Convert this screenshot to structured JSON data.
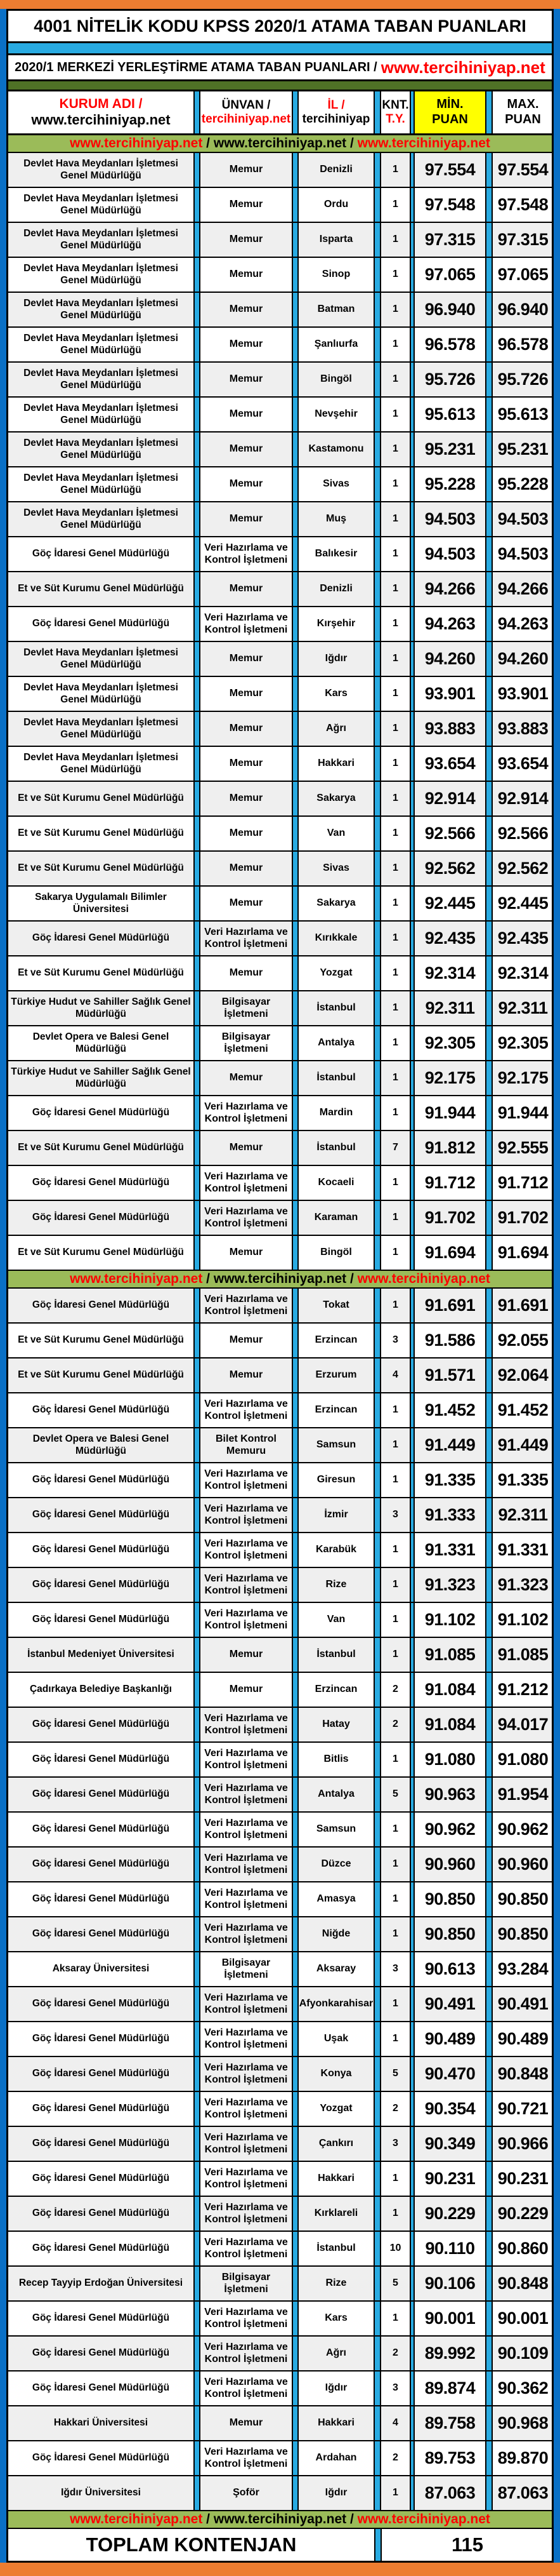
{
  "title": "4001 NİTELİK KODU KPSS 2020/1 ATAMA TABAN PUANLARI",
  "subtitle": {
    "black": "2020/1 MERKEZİ YERLEŞTİRME ATAMA TABAN PUANLARI /",
    "red": "www.tercihiniyap.net"
  },
  "columns": {
    "kurum": {
      "line1": "KURUM ADI /",
      "line2": "www.tercihiniyap.net"
    },
    "unvan": {
      "line1": "ÜNVAN /",
      "line2": "tercihiniyap.net"
    },
    "il": {
      "line1": "İL /",
      "line2": "tercihiniyap"
    },
    "knt": {
      "line1": "KNT.",
      "line2": "T.Y."
    },
    "min": {
      "line1": "MİN.",
      "line2": "PUAN"
    },
    "max": {
      "line1": "MAX.",
      "line2": "PUAN"
    }
  },
  "watermark_band": {
    "red1": "www.tercihiniyap.net",
    "slash": " / ",
    "black": "www.tercihiniyap.net",
    "red2": "www.tercihiniyap.net"
  },
  "footer": {
    "label": "TOPLAM KONTENJAN",
    "total": "115"
  },
  "colors": {
    "orange": "#ED7D31",
    "frame_blue": "#0a70c6",
    "cyan": "#29ABE2",
    "dark_green": "#4f7226",
    "light_green": "#9BBB59",
    "yellow": "#FFFF00",
    "red": "#FF0000",
    "alt_row": "#efefef"
  },
  "row_groups": [
    [
      {
        "kurum": "Devlet Hava Meydanları İşletmesi Genel Müdürlüğü",
        "unvan": "Memur",
        "il": "Denizli",
        "knt": "1",
        "min": "97.554",
        "max": "97.554"
      },
      {
        "kurum": "Devlet Hava Meydanları İşletmesi Genel Müdürlüğü",
        "unvan": "Memur",
        "il": "Ordu",
        "knt": "1",
        "min": "97.548",
        "max": "97.548"
      },
      {
        "kurum": "Devlet Hava Meydanları İşletmesi Genel Müdürlüğü",
        "unvan": "Memur",
        "il": "Isparta",
        "knt": "1",
        "min": "97.315",
        "max": "97.315"
      },
      {
        "kurum": "Devlet Hava Meydanları İşletmesi Genel Müdürlüğü",
        "unvan": "Memur",
        "il": "Sinop",
        "knt": "1",
        "min": "97.065",
        "max": "97.065"
      },
      {
        "kurum": "Devlet Hava Meydanları İşletmesi Genel Müdürlüğü",
        "unvan": "Memur",
        "il": "Batman",
        "knt": "1",
        "min": "96.940",
        "max": "96.940"
      },
      {
        "kurum": "Devlet Hava Meydanları İşletmesi Genel Müdürlüğü",
        "unvan": "Memur",
        "il": "Şanlıurfa",
        "knt": "1",
        "min": "96.578",
        "max": "96.578"
      },
      {
        "kurum": "Devlet Hava Meydanları İşletmesi Genel Müdürlüğü",
        "unvan": "Memur",
        "il": "Bingöl",
        "knt": "1",
        "min": "95.726",
        "max": "95.726"
      },
      {
        "kurum": "Devlet Hava Meydanları İşletmesi Genel Müdürlüğü",
        "unvan": "Memur",
        "il": "Nevşehir",
        "knt": "1",
        "min": "95.613",
        "max": "95.613"
      },
      {
        "kurum": "Devlet Hava Meydanları İşletmesi Genel Müdürlüğü",
        "unvan": "Memur",
        "il": "Kastamonu",
        "knt": "1",
        "min": "95.231",
        "max": "95.231"
      },
      {
        "kurum": "Devlet Hava Meydanları İşletmesi Genel Müdürlüğü",
        "unvan": "Memur",
        "il": "Sivas",
        "knt": "1",
        "min": "95.228",
        "max": "95.228"
      },
      {
        "kurum": "Devlet Hava Meydanları İşletmesi Genel Müdürlüğü",
        "unvan": "Memur",
        "il": "Muş",
        "knt": "1",
        "min": "94.503",
        "max": "94.503"
      },
      {
        "kurum": "Göç İdaresi Genel Müdürlüğü",
        "unvan": "Veri Hazırlama ve Kontrol İşletmeni",
        "il": "Balıkesir",
        "knt": "1",
        "min": "94.503",
        "max": "94.503"
      },
      {
        "kurum": "Et ve Süt Kurumu Genel Müdürlüğü",
        "unvan": "Memur",
        "il": "Denizli",
        "knt": "1",
        "min": "94.266",
        "max": "94.266"
      },
      {
        "kurum": "Göç İdaresi Genel Müdürlüğü",
        "unvan": "Veri Hazırlama ve Kontrol İşletmeni",
        "il": "Kırşehir",
        "knt": "1",
        "min": "94.263",
        "max": "94.263"
      },
      {
        "kurum": "Devlet Hava Meydanları İşletmesi Genel Müdürlüğü",
        "unvan": "Memur",
        "il": "Iğdır",
        "knt": "1",
        "min": "94.260",
        "max": "94.260"
      },
      {
        "kurum": "Devlet Hava Meydanları İşletmesi Genel Müdürlüğü",
        "unvan": "Memur",
        "il": "Kars",
        "knt": "1",
        "min": "93.901",
        "max": "93.901"
      },
      {
        "kurum": "Devlet Hava Meydanları İşletmesi Genel Müdürlüğü",
        "unvan": "Memur",
        "il": "Ağrı",
        "knt": "1",
        "min": "93.883",
        "max": "93.883"
      },
      {
        "kurum": "Devlet Hava Meydanları İşletmesi Genel Müdürlüğü",
        "unvan": "Memur",
        "il": "Hakkari",
        "knt": "1",
        "min": "93.654",
        "max": "93.654"
      },
      {
        "kurum": "Et ve Süt Kurumu Genel Müdürlüğü",
        "unvan": "Memur",
        "il": "Sakarya",
        "knt": "1",
        "min": "92.914",
        "max": "92.914"
      },
      {
        "kurum": "Et ve Süt Kurumu Genel Müdürlüğü",
        "unvan": "Memur",
        "il": "Van",
        "knt": "1",
        "min": "92.566",
        "max": "92.566"
      },
      {
        "kurum": "Et ve Süt Kurumu Genel Müdürlüğü",
        "unvan": "Memur",
        "il": "Sivas",
        "knt": "1",
        "min": "92.562",
        "max": "92.562"
      },
      {
        "kurum": "Sakarya Uygulamalı Bilimler Üniversitesi",
        "unvan": "Memur",
        "il": "Sakarya",
        "knt": "1",
        "min": "92.445",
        "max": "92.445"
      },
      {
        "kurum": "Göç İdaresi Genel Müdürlüğü",
        "unvan": "Veri Hazırlama ve Kontrol İşletmeni",
        "il": "Kırıkkale",
        "knt": "1",
        "min": "92.435",
        "max": "92.435"
      },
      {
        "kurum": "Et ve Süt Kurumu Genel Müdürlüğü",
        "unvan": "Memur",
        "il": "Yozgat",
        "knt": "1",
        "min": "92.314",
        "max": "92.314"
      },
      {
        "kurum": "Türkiye Hudut ve Sahiller Sağlık Genel Müdürlüğü",
        "unvan": "Bilgisayar İşletmeni",
        "il": "İstanbul",
        "knt": "1",
        "min": "92.311",
        "max": "92.311"
      },
      {
        "kurum": "Devlet Opera ve Balesi Genel Müdürlüğü",
        "unvan": "Bilgisayar İşletmeni",
        "il": "Antalya",
        "knt": "1",
        "min": "92.305",
        "max": "92.305"
      },
      {
        "kurum": "Türkiye Hudut ve Sahiller Sağlık Genel Müdürlüğü",
        "unvan": "Memur",
        "il": "İstanbul",
        "knt": "1",
        "min": "92.175",
        "max": "92.175"
      },
      {
        "kurum": "Göç İdaresi Genel Müdürlüğü",
        "unvan": "Veri Hazırlama ve Kontrol İşletmeni",
        "il": "Mardin",
        "knt": "1",
        "min": "91.944",
        "max": "91.944"
      },
      {
        "kurum": "Et ve Süt Kurumu Genel Müdürlüğü",
        "unvan": "Memur",
        "il": "İstanbul",
        "knt": "7",
        "min": "91.812",
        "max": "92.555"
      },
      {
        "kurum": "Göç İdaresi Genel Müdürlüğü",
        "unvan": "Veri Hazırlama ve Kontrol İşletmeni",
        "il": "Kocaeli",
        "knt": "1",
        "min": "91.712",
        "max": "91.712"
      },
      {
        "kurum": "Göç İdaresi Genel Müdürlüğü",
        "unvan": "Veri Hazırlama ve Kontrol İşletmeni",
        "il": "Karaman",
        "knt": "1",
        "min": "91.702",
        "max": "91.702"
      },
      {
        "kurum": "Et ve Süt Kurumu Genel Müdürlüğü",
        "unvan": "Memur",
        "il": "Bingöl",
        "knt": "1",
        "min": "91.694",
        "max": "91.694"
      }
    ],
    [
      {
        "kurum": "Göç İdaresi Genel Müdürlüğü",
        "unvan": "Veri Hazırlama ve Kontrol İşletmeni",
        "il": "Tokat",
        "knt": "1",
        "min": "91.691",
        "max": "91.691"
      },
      {
        "kurum": "Et ve Süt Kurumu Genel Müdürlüğü",
        "unvan": "Memur",
        "il": "Erzincan",
        "knt": "3",
        "min": "91.586",
        "max": "92.055"
      },
      {
        "kurum": "Et ve Süt Kurumu Genel Müdürlüğü",
        "unvan": "Memur",
        "il": "Erzurum",
        "knt": "4",
        "min": "91.571",
        "max": "92.064"
      },
      {
        "kurum": "Göç İdaresi Genel Müdürlüğü",
        "unvan": "Veri Hazırlama ve Kontrol İşletmeni",
        "il": "Erzincan",
        "knt": "1",
        "min": "91.452",
        "max": "91.452"
      },
      {
        "kurum": "Devlet Opera ve Balesi Genel Müdürlüğü",
        "unvan": "Bilet Kontrol Memuru",
        "il": "Samsun",
        "knt": "1",
        "min": "91.449",
        "max": "91.449"
      },
      {
        "kurum": "Göç İdaresi Genel Müdürlüğü",
        "unvan": "Veri Hazırlama ve Kontrol İşletmeni",
        "il": "Giresun",
        "knt": "1",
        "min": "91.335",
        "max": "91.335"
      },
      {
        "kurum": "Göç İdaresi Genel Müdürlüğü",
        "unvan": "Veri Hazırlama ve Kontrol İşletmeni",
        "il": "İzmir",
        "knt": "3",
        "min": "91.333",
        "max": "92.311"
      },
      {
        "kurum": "Göç İdaresi Genel Müdürlüğü",
        "unvan": "Veri Hazırlama ve Kontrol İşletmeni",
        "il": "Karabük",
        "knt": "1",
        "min": "91.331",
        "max": "91.331"
      },
      {
        "kurum": "Göç İdaresi Genel Müdürlüğü",
        "unvan": "Veri Hazırlama ve Kontrol İşletmeni",
        "il": "Rize",
        "knt": "1",
        "min": "91.323",
        "max": "91.323"
      },
      {
        "kurum": "Göç İdaresi Genel Müdürlüğü",
        "unvan": "Veri Hazırlama ve Kontrol İşletmeni",
        "il": "Van",
        "knt": "1",
        "min": "91.102",
        "max": "91.102"
      },
      {
        "kurum": "İstanbul Medeniyet Üniversitesi",
        "unvan": "Memur",
        "il": "İstanbul",
        "knt": "1",
        "min": "91.085",
        "max": "91.085"
      },
      {
        "kurum": "Çadırkaya Belediye Başkanlığı",
        "unvan": "Memur",
        "il": "Erzincan",
        "knt": "2",
        "min": "91.084",
        "max": "91.212"
      },
      {
        "kurum": "Göç İdaresi Genel Müdürlüğü",
        "unvan": "Veri Hazırlama ve Kontrol İşletmeni",
        "il": "Hatay",
        "knt": "2",
        "min": "91.084",
        "max": "94.017"
      },
      {
        "kurum": "Göç İdaresi Genel Müdürlüğü",
        "unvan": "Veri Hazırlama ve Kontrol İşletmeni",
        "il": "Bitlis",
        "knt": "1",
        "min": "91.080",
        "max": "91.080"
      },
      {
        "kurum": "Göç İdaresi Genel Müdürlüğü",
        "unvan": "Veri Hazırlama ve Kontrol İşletmeni",
        "il": "Antalya",
        "knt": "5",
        "min": "90.963",
        "max": "91.954"
      },
      {
        "kurum": "Göç İdaresi Genel Müdürlüğü",
        "unvan": "Veri Hazırlama ve Kontrol İşletmeni",
        "il": "Samsun",
        "knt": "1",
        "min": "90.962",
        "max": "90.962"
      },
      {
        "kurum": "Göç İdaresi Genel Müdürlüğü",
        "unvan": "Veri Hazırlama ve Kontrol İşletmeni",
        "il": "Düzce",
        "knt": "1",
        "min": "90.960",
        "max": "90.960"
      },
      {
        "kurum": "Göç İdaresi Genel Müdürlüğü",
        "unvan": "Veri Hazırlama ve Kontrol İşletmeni",
        "il": "Amasya",
        "knt": "1",
        "min": "90.850",
        "max": "90.850"
      },
      {
        "kurum": "Göç İdaresi Genel Müdürlüğü",
        "unvan": "Veri Hazırlama ve Kontrol İşletmeni",
        "il": "Niğde",
        "knt": "1",
        "min": "90.850",
        "max": "90.850"
      },
      {
        "kurum": "Aksaray Üniversitesi",
        "unvan": "Bilgisayar İşletmeni",
        "il": "Aksaray",
        "knt": "3",
        "min": "90.613",
        "max": "93.284"
      },
      {
        "kurum": "Göç İdaresi Genel Müdürlüğü",
        "unvan": "Veri Hazırlama ve Kontrol İşletmeni",
        "il": "Afyonkarahisar",
        "knt": "1",
        "min": "90.491",
        "max": "90.491"
      },
      {
        "kurum": "Göç İdaresi Genel Müdürlüğü",
        "unvan": "Veri Hazırlama ve Kontrol İşletmeni",
        "il": "Uşak",
        "knt": "1",
        "min": "90.489",
        "max": "90.489"
      },
      {
        "kurum": "Göç İdaresi Genel Müdürlüğü",
        "unvan": "Veri Hazırlama ve Kontrol İşletmeni",
        "il": "Konya",
        "knt": "5",
        "min": "90.470",
        "max": "90.848"
      },
      {
        "kurum": "Göç İdaresi Genel Müdürlüğü",
        "unvan": "Veri Hazırlama ve Kontrol İşletmeni",
        "il": "Yozgat",
        "knt": "2",
        "min": "90.354",
        "max": "90.721"
      },
      {
        "kurum": "Göç İdaresi Genel Müdürlüğü",
        "unvan": "Veri Hazırlama ve Kontrol İşletmeni",
        "il": "Çankırı",
        "knt": "3",
        "min": "90.349",
        "max": "90.966"
      },
      {
        "kurum": "Göç İdaresi Genel Müdürlüğü",
        "unvan": "Veri Hazırlama ve Kontrol İşletmeni",
        "il": "Hakkari",
        "knt": "1",
        "min": "90.231",
        "max": "90.231"
      },
      {
        "kurum": "Göç İdaresi Genel Müdürlüğü",
        "unvan": "Veri Hazırlama ve Kontrol İşletmeni",
        "il": "Kırklareli",
        "knt": "1",
        "min": "90.229",
        "max": "90.229"
      },
      {
        "kurum": "Göç İdaresi Genel Müdürlüğü",
        "unvan": "Veri Hazırlama ve Kontrol İşletmeni",
        "il": "İstanbul",
        "knt": "10",
        "min": "90.110",
        "max": "90.860"
      },
      {
        "kurum": "Recep Tayyip Erdoğan Üniversitesi",
        "unvan": "Bilgisayar İşletmeni",
        "il": "Rize",
        "knt": "5",
        "min": "90.106",
        "max": "90.848"
      },
      {
        "kurum": "Göç İdaresi Genel Müdürlüğü",
        "unvan": "Veri Hazırlama ve Kontrol İşletmeni",
        "il": "Kars",
        "knt": "1",
        "min": "90.001",
        "max": "90.001"
      },
      {
        "kurum": "Göç İdaresi Genel Müdürlüğü",
        "unvan": "Veri Hazırlama ve Kontrol İşletmeni",
        "il": "Ağrı",
        "knt": "2",
        "min": "89.992",
        "max": "90.109"
      },
      {
        "kurum": "Göç İdaresi Genel Müdürlüğü",
        "unvan": "Veri Hazırlama ve Kontrol İşletmeni",
        "il": "Iğdır",
        "knt": "3",
        "min": "89.874",
        "max": "90.362"
      },
      {
        "kurum": "Hakkari Üniversitesi",
        "unvan": "Memur",
        "il": "Hakkari",
        "knt": "4",
        "min": "89.758",
        "max": "90.968"
      },
      {
        "kurum": "Göç İdaresi Genel Müdürlüğü",
        "unvan": "Veri Hazırlama ve Kontrol İşletmeni",
        "il": "Ardahan",
        "knt": "2",
        "min": "89.753",
        "max": "89.870"
      },
      {
        "kurum": "Iğdır Üniversitesi",
        "unvan": "Şoför",
        "il": "Iğdır",
        "knt": "1",
        "min": "87.063",
        "max": "87.063"
      }
    ]
  ]
}
